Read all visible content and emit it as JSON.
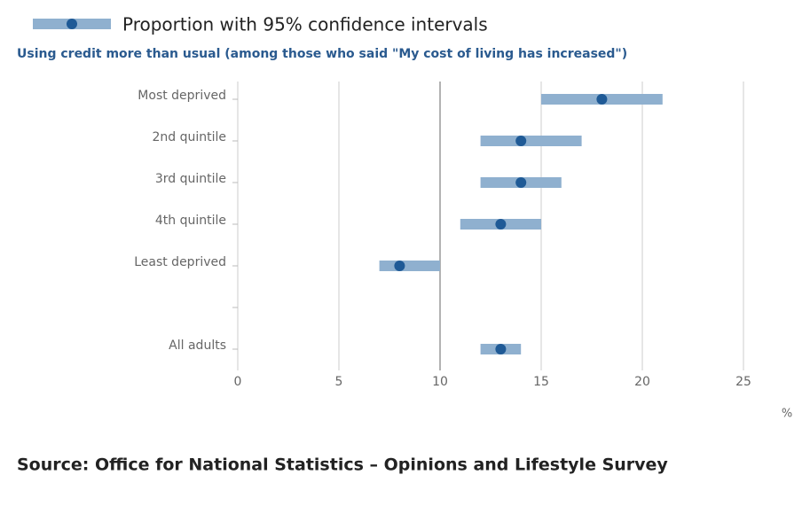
{
  "chart_data": {
    "type": "dot-interval",
    "subtitle": "Using credit more than usual (among those who said \"My cost of living has increased\")",
    "categories": [
      "Most deprived",
      "2nd quintile",
      "3rd quintile",
      "4th quintile",
      "Least deprived",
      null,
      "All adults"
    ],
    "series": [
      {
        "name": "Proportion with 95% confidence intervals",
        "color": "#1f5a96",
        "interval_color": "#8fb0cf",
        "values": [
          18,
          14,
          14,
          13,
          8,
          null,
          13
        ],
        "lower": [
          15,
          12,
          12,
          11,
          7,
          null,
          12
        ],
        "upper": [
          21,
          17,
          16,
          15,
          10,
          null,
          14
        ]
      }
    ],
    "xlim": [
      0,
      25
    ],
    "xticks": [
      0,
      5,
      10,
      15,
      20,
      25
    ],
    "x_label": "%",
    "reference_x": 10,
    "grid": true,
    "source": "Source: Office for National Statistics – Opinions and Lifestyle Survey"
  }
}
